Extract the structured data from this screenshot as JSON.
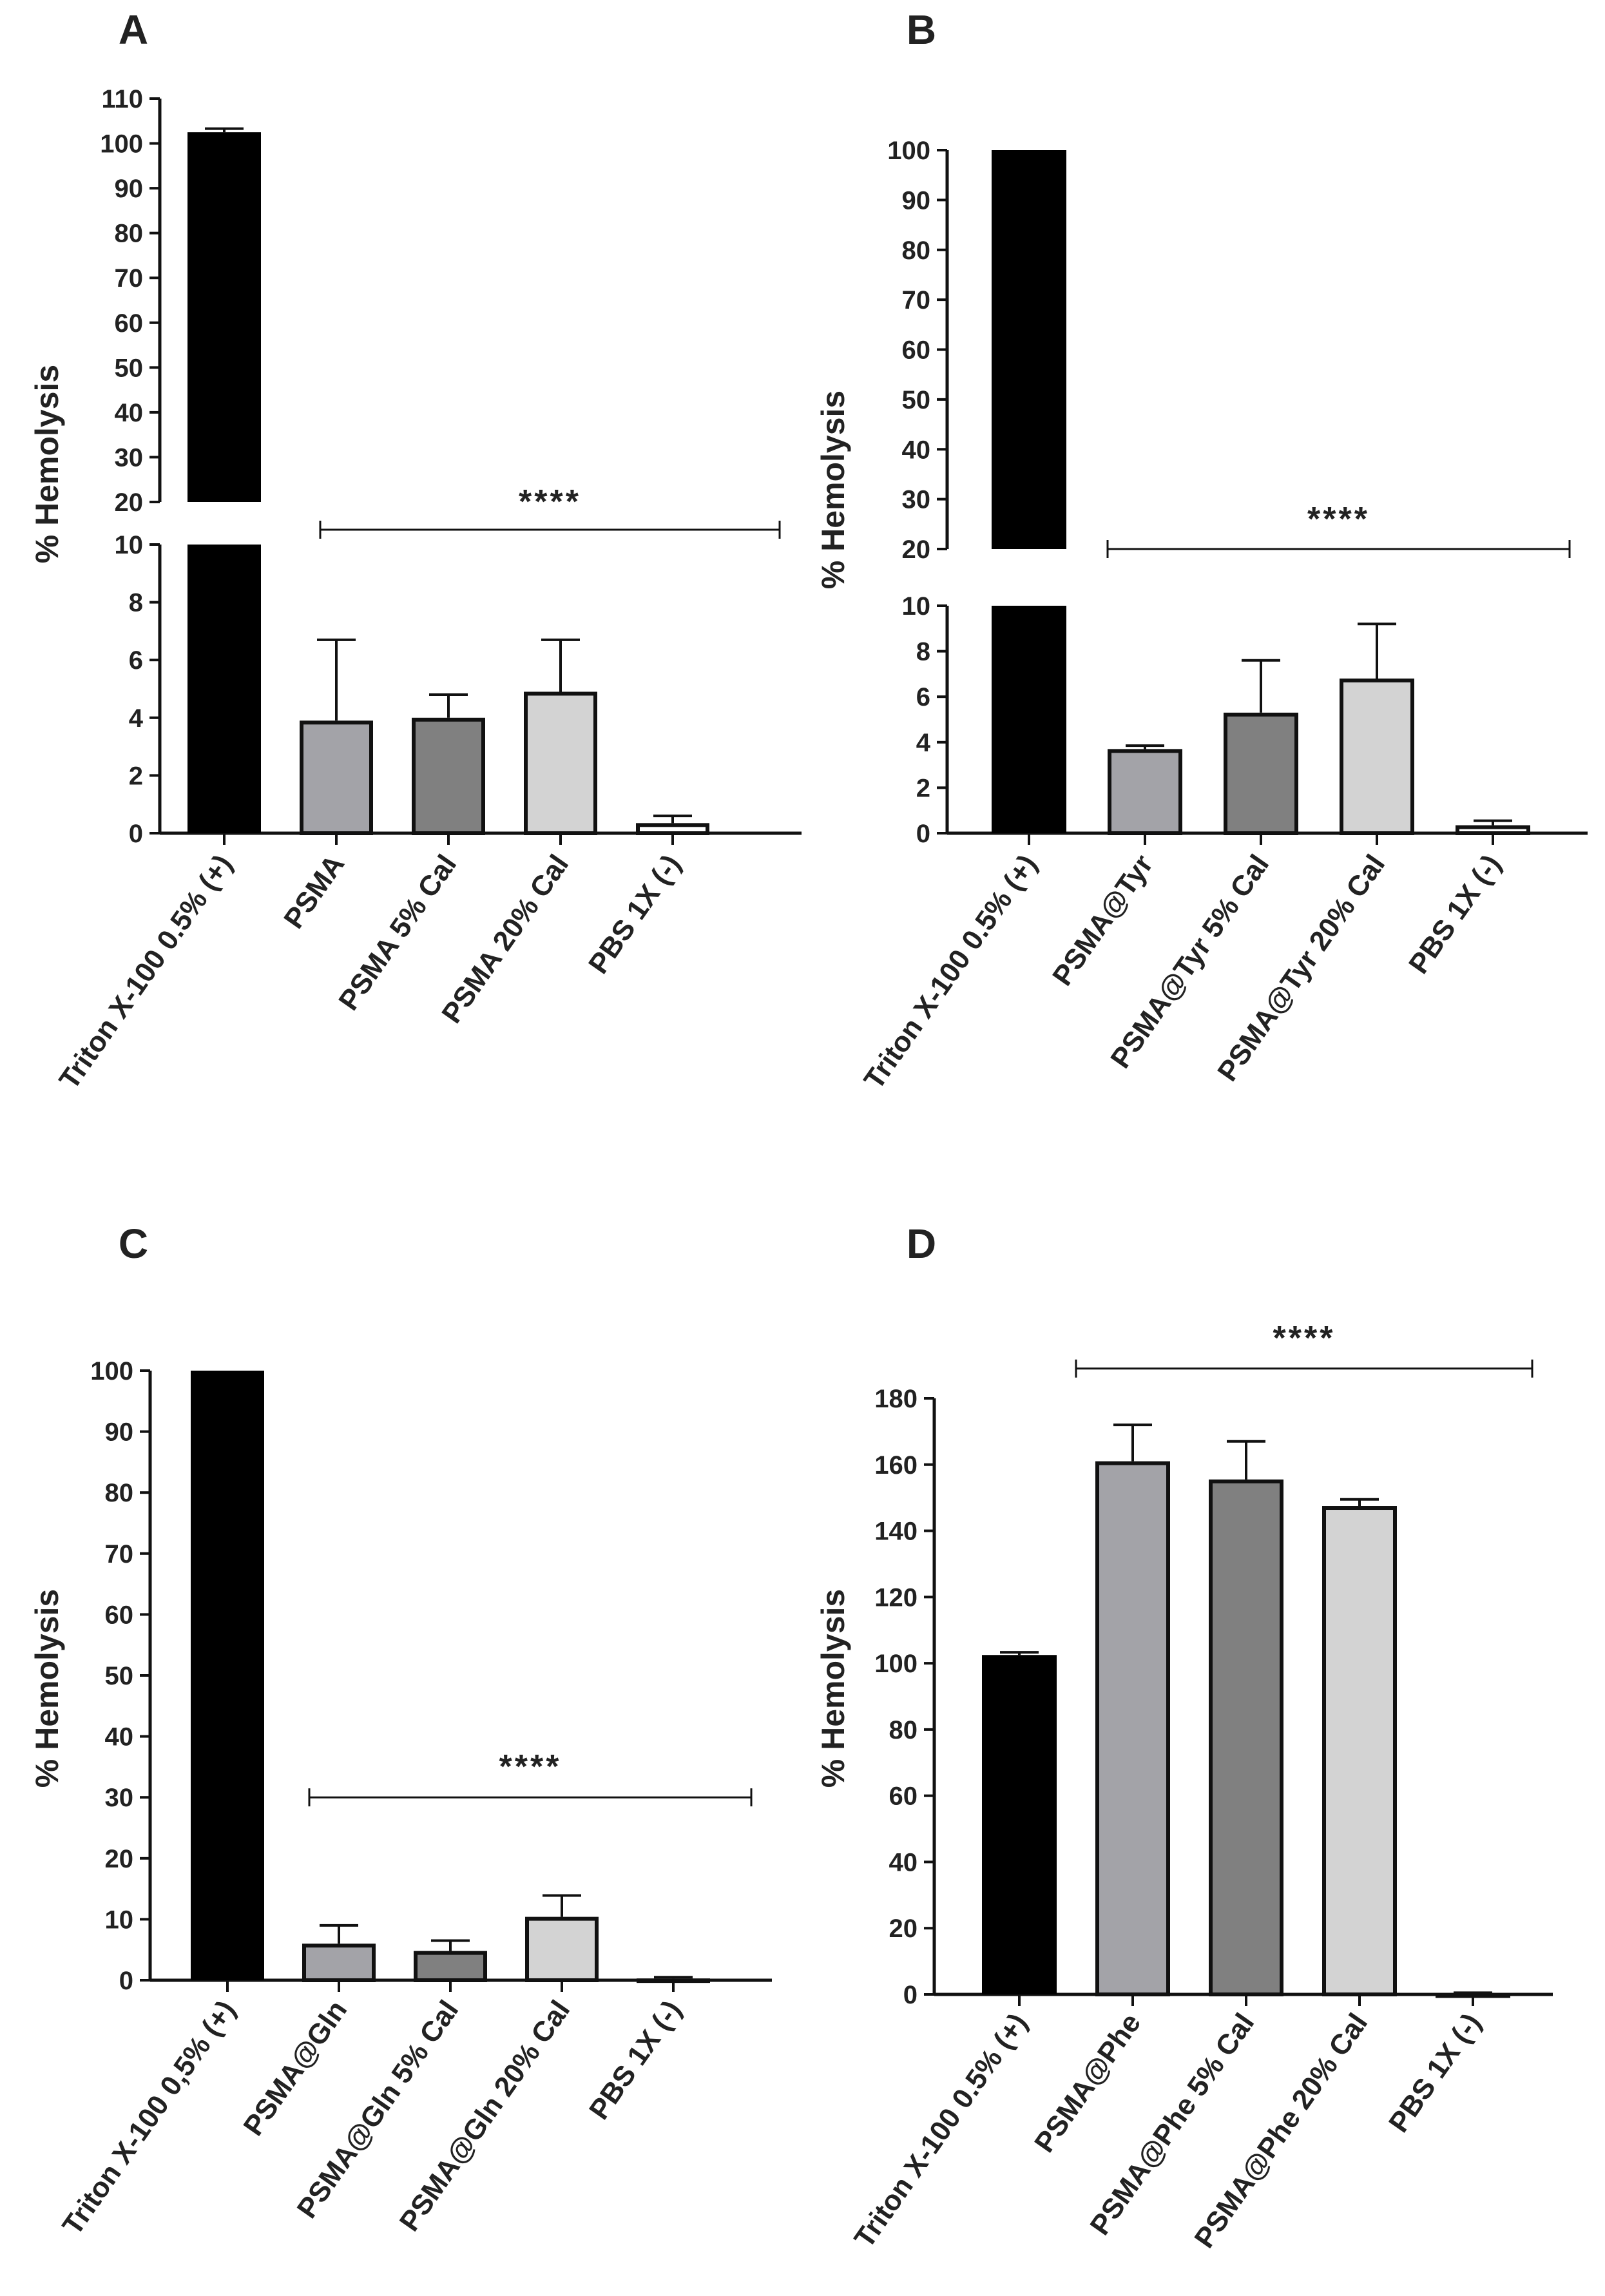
{
  "colors": {
    "axis": "#111111",
    "triton": "#000000",
    "base": "#a3a3a8",
    "cal5": "#808080",
    "cal20": "#d3d3d3",
    "pbs": "#ffffff",
    "bar_edge": "#111111"
  },
  "chart_data": [
    {
      "panel": "A",
      "type": "bar",
      "ylabel": "% Hemolysis",
      "broken_axis": true,
      "lower_range": [
        0,
        10
      ],
      "lower_ticks": [
        0,
        2,
        4,
        6,
        8,
        10
      ],
      "upper_range": [
        20,
        110
      ],
      "upper_ticks": [
        20,
        30,
        40,
        50,
        60,
        70,
        80,
        90,
        100,
        110
      ],
      "categories": [
        "Triton X-100 0.5% (+)",
        "PSMA",
        "PSMA 5% Cal",
        "PSMA 20% Cal",
        "PBS 1X (-)"
      ],
      "values": [
        102.5,
        3.9,
        4.0,
        4.9,
        0.35
      ],
      "errors": [
        0.8,
        2.8,
        0.8,
        1.8,
        0.25
      ],
      "significance": {
        "label": "****",
        "from": 1,
        "to": 4
      }
    },
    {
      "panel": "B",
      "type": "bar",
      "ylabel": "% Hemolysis",
      "broken_axis": true,
      "lower_range": [
        0,
        10
      ],
      "lower_ticks": [
        0,
        2,
        4,
        6,
        8,
        10
      ],
      "upper_range": [
        20,
        100
      ],
      "upper_ticks": [
        20,
        30,
        40,
        50,
        60,
        70,
        80,
        90,
        100
      ],
      "categories": [
        "Triton X-100 0.5% (+)",
        "PSMA@Tyr",
        "PSMA@Tyr 5% Cal",
        "PSMA@Tyr 20% Cal",
        "PBS 1X (-)"
      ],
      "values": [
        100,
        3.7,
        5.3,
        6.8,
        0.35
      ],
      "errors": [
        0,
        0.15,
        2.3,
        2.4,
        0.2
      ],
      "significance": {
        "label": "****",
        "from": 1,
        "to": 4
      }
    },
    {
      "panel": "C",
      "type": "bar",
      "ylabel": "% Hemolysis",
      "broken_axis": false,
      "ylim": [
        0,
        100
      ],
      "yticks": [
        0,
        10,
        20,
        30,
        40,
        50,
        60,
        70,
        80,
        90,
        100
      ],
      "categories": [
        "Triton X-100 0,5% (+)",
        "PSMA@Gln",
        "PSMA@Gln 5% Cal",
        "PSMA@Gln 20% Cal",
        "PBS 1X (-)"
      ],
      "values": [
        100,
        6.0,
        4.8,
        10.4,
        0.3
      ],
      "errors": [
        0,
        3.0,
        1.7,
        3.5,
        0.2
      ],
      "significance": {
        "label": "****",
        "from": 1,
        "to": 4,
        "y": 30
      }
    },
    {
      "panel": "D",
      "type": "bar",
      "ylabel": "% Hemolysis",
      "broken_axis": false,
      "ylim": [
        0,
        180
      ],
      "yticks": [
        0,
        20,
        40,
        60,
        80,
        100,
        120,
        140,
        160,
        180
      ],
      "categories": [
        "Triton X-100 0.5% (+)",
        "PSMA@Phe",
        "PSMA@Phe 5% Cal",
        "PSMA@Phe 20% Cal",
        "PBS 1X (-)"
      ],
      "values": [
        102.5,
        161,
        155.5,
        147.5,
        0.3
      ],
      "errors": [
        0.8,
        11,
        11.5,
        2,
        0.2
      ],
      "significance": {
        "label": "****",
        "from": 0,
        "to": 4,
        "y": 189
      }
    }
  ]
}
